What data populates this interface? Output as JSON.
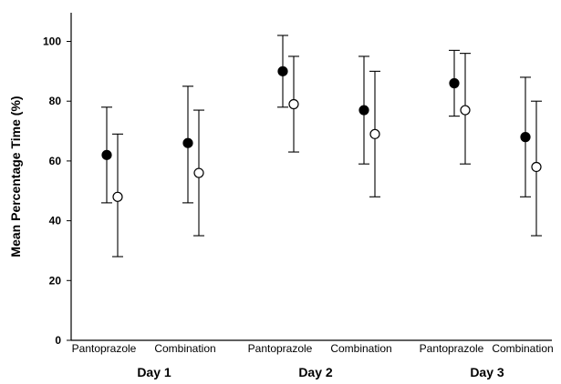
{
  "chart_data": {
    "type": "scatter",
    "title": "",
    "xlabel": "",
    "ylabel": "Mean Percentage Time (%)",
    "ylim": [
      0,
      110
    ],
    "yticks": [
      0,
      20,
      40,
      60,
      80,
      100
    ],
    "grid": false,
    "legend": "none",
    "groups": [
      {
        "label": "Day 1",
        "categories": [
          {
            "label": "Pantoprazole",
            "points": [
              {
                "marker": "filled",
                "mean": 62,
                "lower": 46,
                "upper": 78
              },
              {
                "marker": "open",
                "mean": 48,
                "lower": 28,
                "upper": 69
              }
            ]
          },
          {
            "label": "Combination",
            "points": [
              {
                "marker": "filled",
                "mean": 66,
                "lower": 46,
                "upper": 85
              },
              {
                "marker": "open",
                "mean": 56,
                "lower": 35,
                "upper": 77
              }
            ]
          }
        ]
      },
      {
        "label": "Day 2",
        "categories": [
          {
            "label": "Pantoprazole",
            "points": [
              {
                "marker": "filled",
                "mean": 90,
                "lower": 78,
                "upper": 102
              },
              {
                "marker": "open",
                "mean": 79,
                "lower": 63,
                "upper": 95
              }
            ]
          },
          {
            "label": "Combination",
            "points": [
              {
                "marker": "filled",
                "mean": 77,
                "lower": 59,
                "upper": 95
              },
              {
                "marker": "open",
                "mean": 69,
                "lower": 48,
                "upper": 90
              }
            ]
          }
        ]
      },
      {
        "label": "Day 3",
        "categories": [
          {
            "label": "Pantoprazole",
            "points": [
              {
                "marker": "filled",
                "mean": 86,
                "lower": 75,
                "upper": 97
              },
              {
                "marker": "open",
                "mean": 77,
                "lower": 59,
                "upper": 96
              }
            ]
          },
          {
            "label": "Combination",
            "points": [
              {
                "marker": "filled",
                "mean": 68,
                "lower": 48,
                "upper": 88
              },
              {
                "marker": "open",
                "mean": 58,
                "lower": 35,
                "upper": 80
              }
            ]
          }
        ]
      }
    ],
    "colors": {
      "filled": "#000000",
      "open": "#ffffff",
      "stroke": "#000000"
    }
  }
}
